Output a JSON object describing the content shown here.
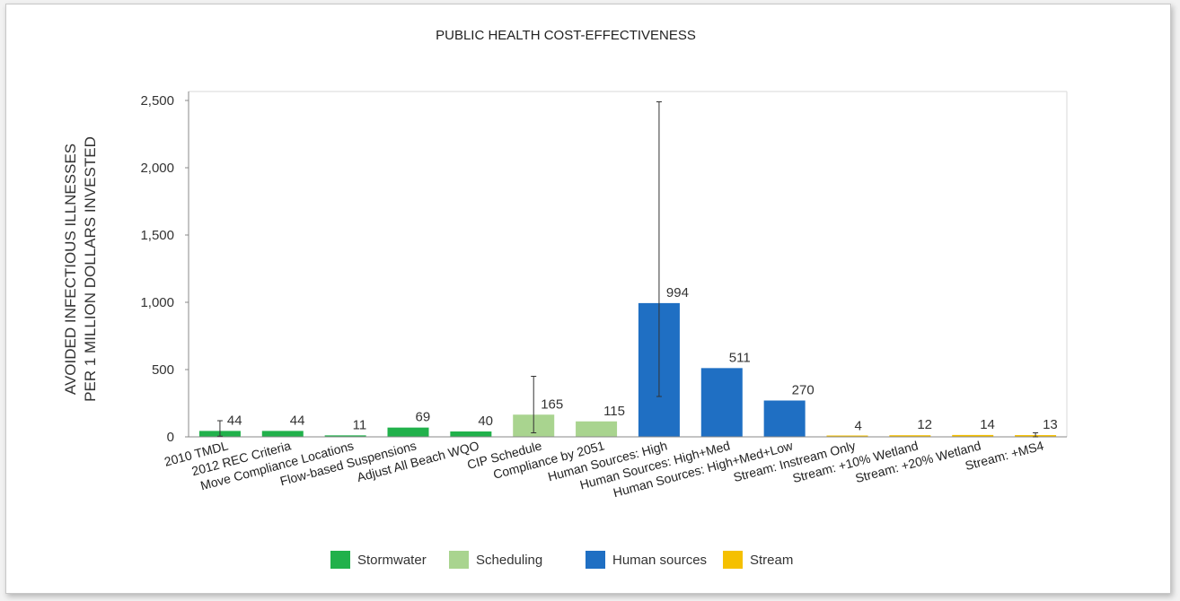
{
  "chart_data": {
    "type": "bar",
    "title": "PUBLIC HEALTH COST-EFFECTIVENESS",
    "ylabel_line1": "AVOIDED INFECTIOUS ILLNESSES",
    "ylabel_line2": "PER 1 MILLION DOLLARS INVESTED",
    "xlabel": "",
    "ylim": [
      0,
      2500
    ],
    "yticks": [
      0,
      500,
      1000,
      1500,
      2000,
      2500
    ],
    "ytick_labels": [
      "0",
      "500",
      "1,000",
      "1,500",
      "2,000",
      "2,500"
    ],
    "grid": false,
    "legend_position": "bottom",
    "categories": [
      "2010 TMDL",
      "2012 REC Criteria",
      "Move Compliance Locations",
      "Flow-based Suspensions",
      "Adjust All Beach WQO",
      "CIP Schedule",
      "Compliance by 2051",
      "Human Sources: High",
      "Human Sources: High+Med",
      "Human Sources: High+Med+Low",
      "Stream: Instream Only",
      "Stream: +10% Wetland",
      "Stream: +20% Wetland",
      "Stream: +MS4"
    ],
    "values": [
      44,
      44,
      11,
      69,
      40,
      165,
      115,
      994,
      511,
      270,
      4,
      12,
      14,
      13
    ],
    "value_labels": [
      "44",
      "44",
      "11",
      "69",
      "40",
      "165",
      "115",
      "994",
      "511",
      "270",
      "4",
      "12",
      "14",
      "13"
    ],
    "groups": [
      "Stormwater",
      "Stormwater",
      "Stormwater",
      "Stormwater",
      "Stormwater",
      "Scheduling",
      "Scheduling",
      "Human sources",
      "Human sources",
      "Human sources",
      "Stream",
      "Stream",
      "Stream",
      "Stream"
    ],
    "error_bars": [
      [
        5,
        120
      ],
      null,
      null,
      null,
      null,
      [
        30,
        450
      ],
      null,
      [
        300,
        2490
      ],
      null,
      null,
      null,
      null,
      null,
      [
        0,
        30
      ]
    ],
    "legend": [
      {
        "name": "Stormwater",
        "color": "#21b14b"
      },
      {
        "name": "Scheduling",
        "color": "#a9d48f"
      },
      {
        "name": "Human sources",
        "color": "#1f6fc3"
      },
      {
        "name": "Stream",
        "color": "#f5c000"
      }
    ]
  }
}
